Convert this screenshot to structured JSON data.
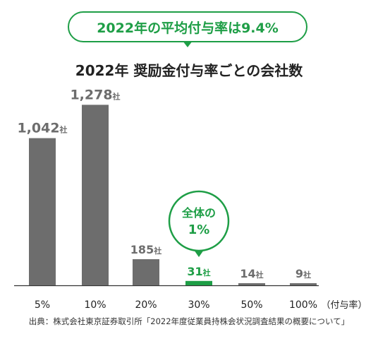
{
  "headline": "2022年の平均付与率は9.4%",
  "chart_data": {
    "type": "bar",
    "title": "2022年 奨励金付与率ごとの会社数",
    "xlabel": "（付与率）",
    "ylabel": "",
    "unit": "社",
    "categories": [
      "5%",
      "10%",
      "20%",
      "30%",
      "50%",
      "100%"
    ],
    "values": [
      1042,
      1278,
      185,
      31,
      14,
      9
    ],
    "value_labels": [
      "1,042",
      "1,278",
      "185",
      "31",
      "14",
      "9"
    ],
    "highlight_index": 3,
    "highlight_note": [
      "全体の",
      "1%"
    ],
    "ylim": [
      0,
      1300
    ],
    "colors": {
      "bar": "#6d6d6d",
      "highlight": "#1e9e46",
      "label": "#6d6d6d"
    }
  },
  "source": "出典：株式会社東京証券取引所「2022年度従業員持株会状況調査結果の概要について」"
}
